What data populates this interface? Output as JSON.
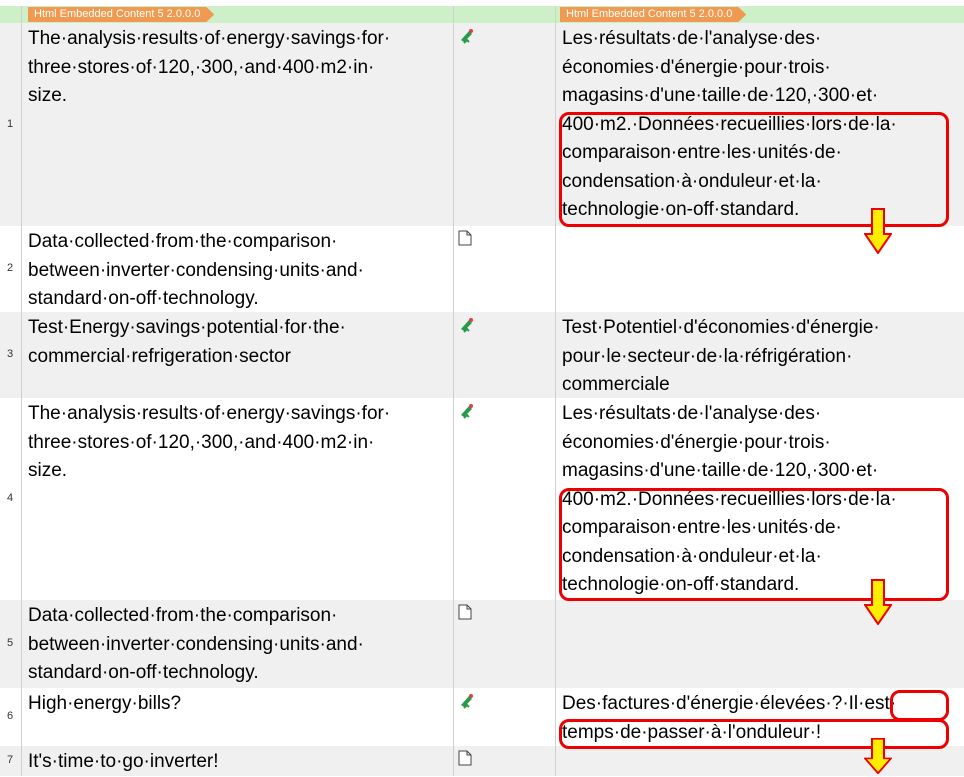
{
  "header": {
    "source_tag": "Html Embedded Content 5 2.0.0.0",
    "target_tag": "Html Embedded Content 5 2.0.0.0"
  },
  "colors": {
    "header_bg": "#cdf0c8",
    "tag": "#ef9a50",
    "highlight": "#e00000",
    "arrow": "#ffee00"
  },
  "segments": [
    {
      "number": "1",
      "status": "edited-pencil-icon",
      "source": [
        "The·analysis·results·of·energy·savings·for·",
        "three·stores·of·120,·300,·and·400·m2·in·",
        "size."
      ],
      "target": [
        "Les·résultats·de·l'analyse·des·",
        "économies·d'énergie·pour·trois·",
        "magasins·d'une·taille·de·120,·300·et·",
        "400·m2.·Données·recueillies·lors·de·la·",
        "comparaison·entre·les·unités·de·",
        "condensation·à·onduleur·et·la·",
        "technologie·on-off·standard."
      ]
    },
    {
      "number": "2",
      "status": "empty-document-icon",
      "source": [
        "Data·collected·from·the·comparison·",
        "between·inverter·condensing·units·and·",
        "standard·on-off·technology."
      ],
      "target": []
    },
    {
      "number": "3",
      "status": "edited-pencil-icon",
      "source": [
        "Test·Energy·savings·potential·for·the·",
        "commercial·refrigeration·sector"
      ],
      "target": [
        "Test·Potentiel·d'économies·d'énergie·",
        "pour·le·secteur·de·la·réfrigération·",
        "commerciale"
      ]
    },
    {
      "number": "4",
      "status": "edited-pencil-icon",
      "source": [
        "The·analysis·results·of·energy·savings·for·",
        "three·stores·of·120,·300,·and·400·m2·in·",
        "size."
      ],
      "target": [
        "Les·résultats·de·l'analyse·des·",
        "économies·d'énergie·pour·trois·",
        "magasins·d'une·taille·de·120,·300·et·",
        "400·m2.·Données·recueillies·lors·de·la·",
        "comparaison·entre·les·unités·de·",
        "condensation·à·onduleur·et·la·",
        "technologie·on-off·standard."
      ]
    },
    {
      "number": "5",
      "status": "empty-document-icon",
      "source": [
        "Data·collected·from·the·comparison·",
        "between·inverter·condensing·units·and·",
        "standard·on-off·technology."
      ],
      "target": []
    },
    {
      "number": "6",
      "status": "edited-pencil-icon",
      "source": [
        "High·energy·bills?"
      ],
      "target": [
        "Des·factures·d'énergie·élevées·?·Il·est·",
        "temps·de·passer·à·l'onduleur·!"
      ]
    },
    {
      "number": "7",
      "status": "empty-document-icon",
      "source": [
        "It's·time·to·go·inverter!"
      ],
      "target": []
    }
  ]
}
